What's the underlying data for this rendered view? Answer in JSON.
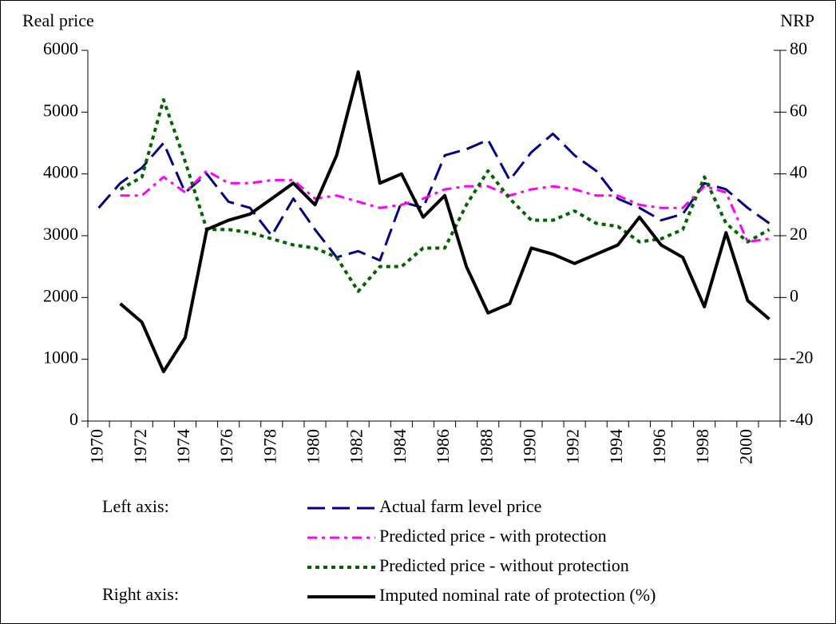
{
  "chart_data": {
    "type": "line",
    "y_label": "Real price",
    "y2_label": "NRP",
    "legend_groups": [
      "Left axis:",
      "Right axis:"
    ],
    "categories": [
      "1970",
      null,
      "1972",
      null,
      "1974",
      null,
      "1976",
      null,
      "1978",
      null,
      "1980",
      null,
      "1982",
      null,
      "1984",
      null,
      "1986",
      null,
      "1988",
      null,
      "1990",
      null,
      "1992",
      null,
      "1994",
      null,
      "1996",
      null,
      "1998",
      null,
      "2000",
      null
    ],
    "ylim": [
      0,
      6000
    ],
    "yticks": [
      0,
      1000,
      2000,
      3000,
      4000,
      5000,
      6000
    ],
    "y2lim": [
      -40,
      80
    ],
    "y2ticks": [
      -40,
      -20,
      0,
      20,
      40,
      60,
      80
    ],
    "series": [
      {
        "name": "Actual farm level price",
        "color": "#000080",
        "style": "dashed",
        "values": [
          3450,
          3850,
          4100,
          4500,
          3700,
          4000,
          3550,
          3450,
          3000,
          3600,
          3100,
          2650,
          2750,
          2600,
          3550,
          3450,
          4300,
          4400,
          4550,
          3900,
          4350,
          4650,
          4300,
          4050,
          3600,
          3450,
          3250,
          3350,
          3850,
          3750,
          3450,
          3200
        ]
      },
      {
        "name": "Predicted price - with protection",
        "color": "#ff00ff",
        "style": "dashdot",
        "values": [
          null,
          3650,
          3650,
          3950,
          3700,
          4050,
          3850,
          3850,
          3900,
          3900,
          3600,
          3650,
          3550,
          3450,
          3500,
          3600,
          3750,
          3800,
          3800,
          3650,
          3750,
          3800,
          3750,
          3650,
          3650,
          3500,
          3450,
          3450,
          3800,
          3700,
          2900,
          2950
        ]
      },
      {
        "name": "Predicted price - without protection",
        "color": "#006400",
        "style": "dotted",
        "values": [
          null,
          3750,
          3950,
          5200,
          4200,
          3100,
          3100,
          3050,
          2950,
          2850,
          2800,
          2650,
          2100,
          2500,
          2500,
          2800,
          2800,
          3500,
          4050,
          3600,
          3250,
          3250,
          3400,
          3200,
          3150,
          2900,
          2950,
          3100,
          3950,
          3200,
          2900,
          3100
        ]
      },
      {
        "name": "Imputed nominal rate of protection (%)",
        "color": "#000000",
        "style": "solid",
        "axis": "y2",
        "values": [
          null,
          -2,
          -8,
          -24,
          -13,
          22,
          25,
          27,
          32,
          37,
          30,
          46,
          73,
          37,
          40,
          26,
          33,
          10,
          -5,
          -2,
          16,
          14,
          11,
          14,
          17,
          26,
          17,
          13,
          -3,
          21,
          -1,
          -7
        ]
      }
    ]
  }
}
